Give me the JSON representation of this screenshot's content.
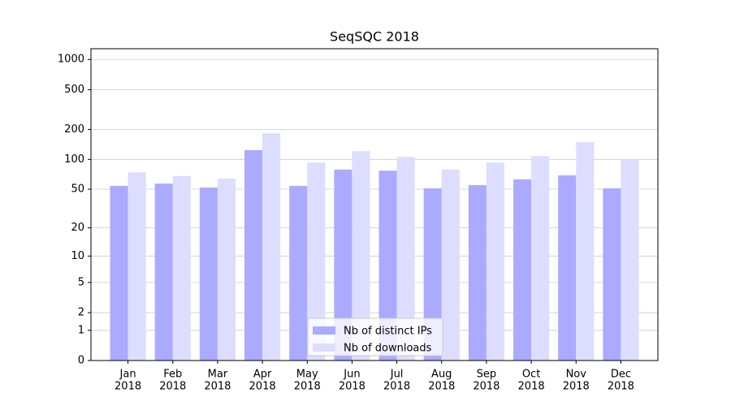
{
  "chart_data": {
    "type": "bar",
    "title": "SeqSQC 2018",
    "categories": [
      [
        "Jan",
        "2018"
      ],
      [
        "Feb",
        "2018"
      ],
      [
        "Mar",
        "2018"
      ],
      [
        "Apr",
        "2018"
      ],
      [
        "May",
        "2018"
      ],
      [
        "Jun",
        "2018"
      ],
      [
        "Jul",
        "2018"
      ],
      [
        "Aug",
        "2018"
      ],
      [
        "Sep",
        "2018"
      ],
      [
        "Oct",
        "2018"
      ],
      [
        "Nov",
        "2018"
      ],
      [
        "Dec",
        "2018"
      ]
    ],
    "series": [
      {
        "name": "Nb of distinct IPs",
        "color": "#aaaaff",
        "values": [
          54,
          57,
          52,
          124,
          54,
          79,
          77,
          51,
          55,
          63,
          69,
          51
        ]
      },
      {
        "name": "Nb of downloads",
        "color": "#ddddff",
        "values": [
          74,
          68,
          64,
          183,
          93,
          121,
          106,
          79,
          93,
          108,
          149,
          100
        ]
      }
    ],
    "yscale": "log1p",
    "ylim": [
      0,
      1280
    ],
    "yticks": [
      0,
      1,
      2,
      5,
      10,
      20,
      50,
      100,
      200,
      500,
      1000
    ],
    "grid": true,
    "legend": "lower center"
  }
}
